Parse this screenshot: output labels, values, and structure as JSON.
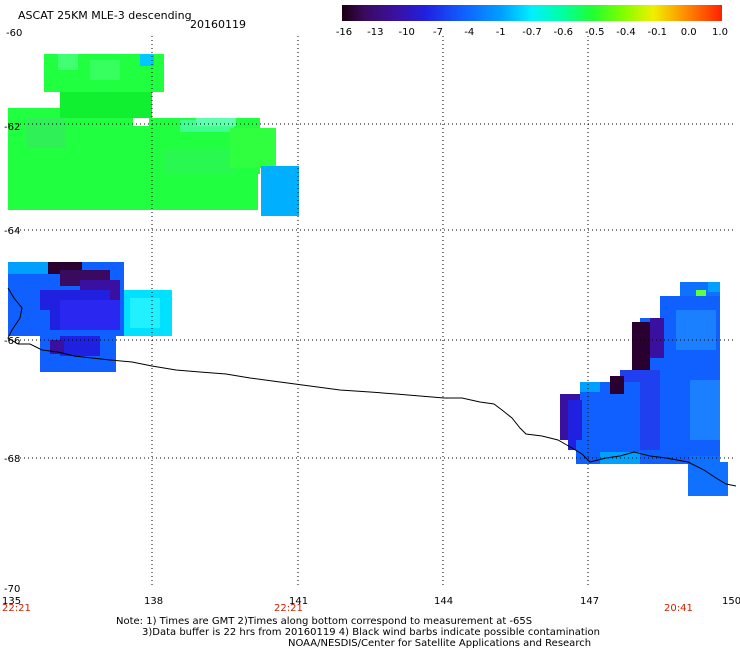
{
  "header": {
    "title": "ASCAT 25KM MLE-3 descending",
    "date": "20160119"
  },
  "colorbar": {
    "labels": [
      "-16",
      "-13",
      "-10",
      "-7",
      "-4",
      "-1",
      "-0.7",
      "-0.6",
      "-0.5",
      "-0.4",
      "-0.1",
      "0.0",
      "1.0"
    ],
    "colors": [
      "#2a0030",
      "#3a0a60",
      "#3a10a0",
      "#2020e0",
      "#1060ff",
      "#00a0ff",
      "#00e0ff",
      "#00ffb0",
      "#20ff40",
      "#80ff00",
      "#f0f000",
      "#ffa000",
      "#ff3000"
    ]
  },
  "axes": {
    "lat_labels": [
      "-60",
      "-62",
      "-64",
      "-66",
      "-68",
      "-70"
    ],
    "lon_labels": [
      "135",
      "138",
      "141",
      "144",
      "147",
      "150"
    ],
    "time_labels": [
      "22:21",
      "22:21",
      "20:41"
    ],
    "time_color": "#cc2200"
  },
  "notes": {
    "line1": "Note: 1) Times are GMT 2)Times along bottom correspond to measurement at -65S",
    "line2": "3)Data buffer is 22 hrs from 20160119 4) Black wind barbs indicate possible contamination",
    "line3": "NOAA/NESDIS/Center for Satellite Applications and Research"
  }
}
